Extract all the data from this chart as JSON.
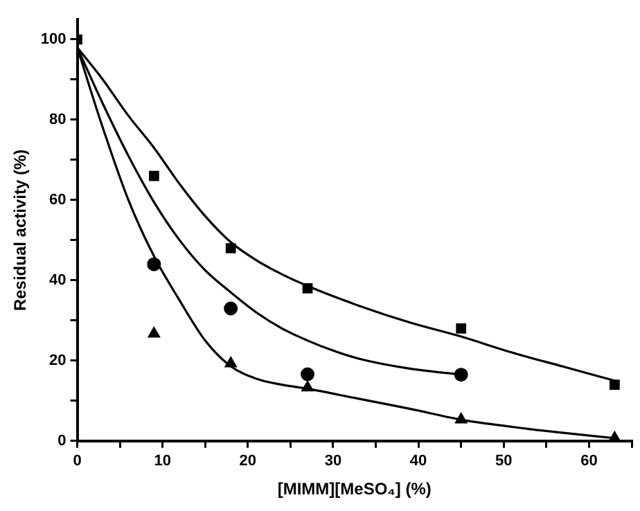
{
  "chart_data": {
    "type": "scatter",
    "xlabel": "[MIMM][MeSO₄] (%)",
    "ylabel": "Residual activity (%)",
    "xlim": [
      0,
      65
    ],
    "ylim": [
      0,
      105
    ],
    "xticks": [
      0,
      {
        "value": 5,
        "label": null
      },
      10,
      {
        "value": 15,
        "label": null
      },
      20,
      {
        "value": 25,
        "label": null
      },
      30,
      {
        "value": 35,
        "label": null
      },
      40,
      {
        "value": 45,
        "label": null
      },
      50,
      {
        "value": 55,
        "label": null
      },
      60,
      {
        "value": 65,
        "label": null
      }
    ],
    "yticks": [
      0,
      {
        "value": 10,
        "label": null
      },
      20,
      {
        "value": 30,
        "label": null
      },
      40,
      {
        "value": 50,
        "label": null
      },
      60,
      {
        "value": 70,
        "label": null
      },
      80,
      {
        "value": 90,
        "label": null
      },
      100
    ],
    "grid": false,
    "legend": false,
    "series": [
      {
        "type": "scatter",
        "marker": "square",
        "color": "#000000",
        "x": [
          0,
          9,
          18,
          27,
          45,
          63
        ],
        "values": [
          100,
          66,
          48,
          38,
          28,
          14
        ]
      },
      {
        "type": "scatter",
        "marker": "circle",
        "color": "#000000",
        "x": [
          9,
          18,
          27,
          45
        ],
        "values": [
          44,
          33,
          16.6,
          16.5
        ]
      },
      {
        "type": "scatter",
        "marker": "triangle",
        "color": "#000000",
        "x": [
          9,
          18,
          27,
          45,
          63
        ],
        "values": [
          26.7,
          19.3,
          13.3,
          5.3,
          0.7
        ]
      },
      {
        "type": "line",
        "marker": "none",
        "color": "#000000",
        "x": [
          0,
          3,
          6,
          9,
          12,
          15,
          18,
          21,
          24,
          27,
          33,
          39,
          45,
          51,
          57,
          63
        ],
        "values": [
          98,
          90,
          81,
          73,
          64,
          56,
          49.5,
          45,
          41.5,
          38.6,
          33.7,
          29.5,
          26,
          22,
          18.5,
          15
        ]
      },
      {
        "type": "line",
        "marker": "none",
        "color": "#000000",
        "x": [
          0,
          3,
          6,
          9,
          12,
          15,
          18,
          21,
          24,
          27,
          30,
          33,
          39,
          45
        ],
        "values": [
          98,
          84,
          71,
          59.5,
          50,
          42.5,
          37,
          32,
          28,
          25,
          22.5,
          20.5,
          18,
          16.5
        ]
      },
      {
        "type": "line",
        "marker": "none",
        "color": "#000000",
        "x": [
          0,
          3,
          6,
          9,
          12,
          15,
          18,
          21,
          24,
          27,
          33,
          39,
          45,
          51,
          57,
          63
        ],
        "values": [
          98,
          78,
          60,
          46,
          35,
          25,
          18.6,
          15.5,
          14,
          13,
          10.5,
          8,
          5.3,
          3.5,
          2,
          0.7
        ]
      }
    ]
  }
}
